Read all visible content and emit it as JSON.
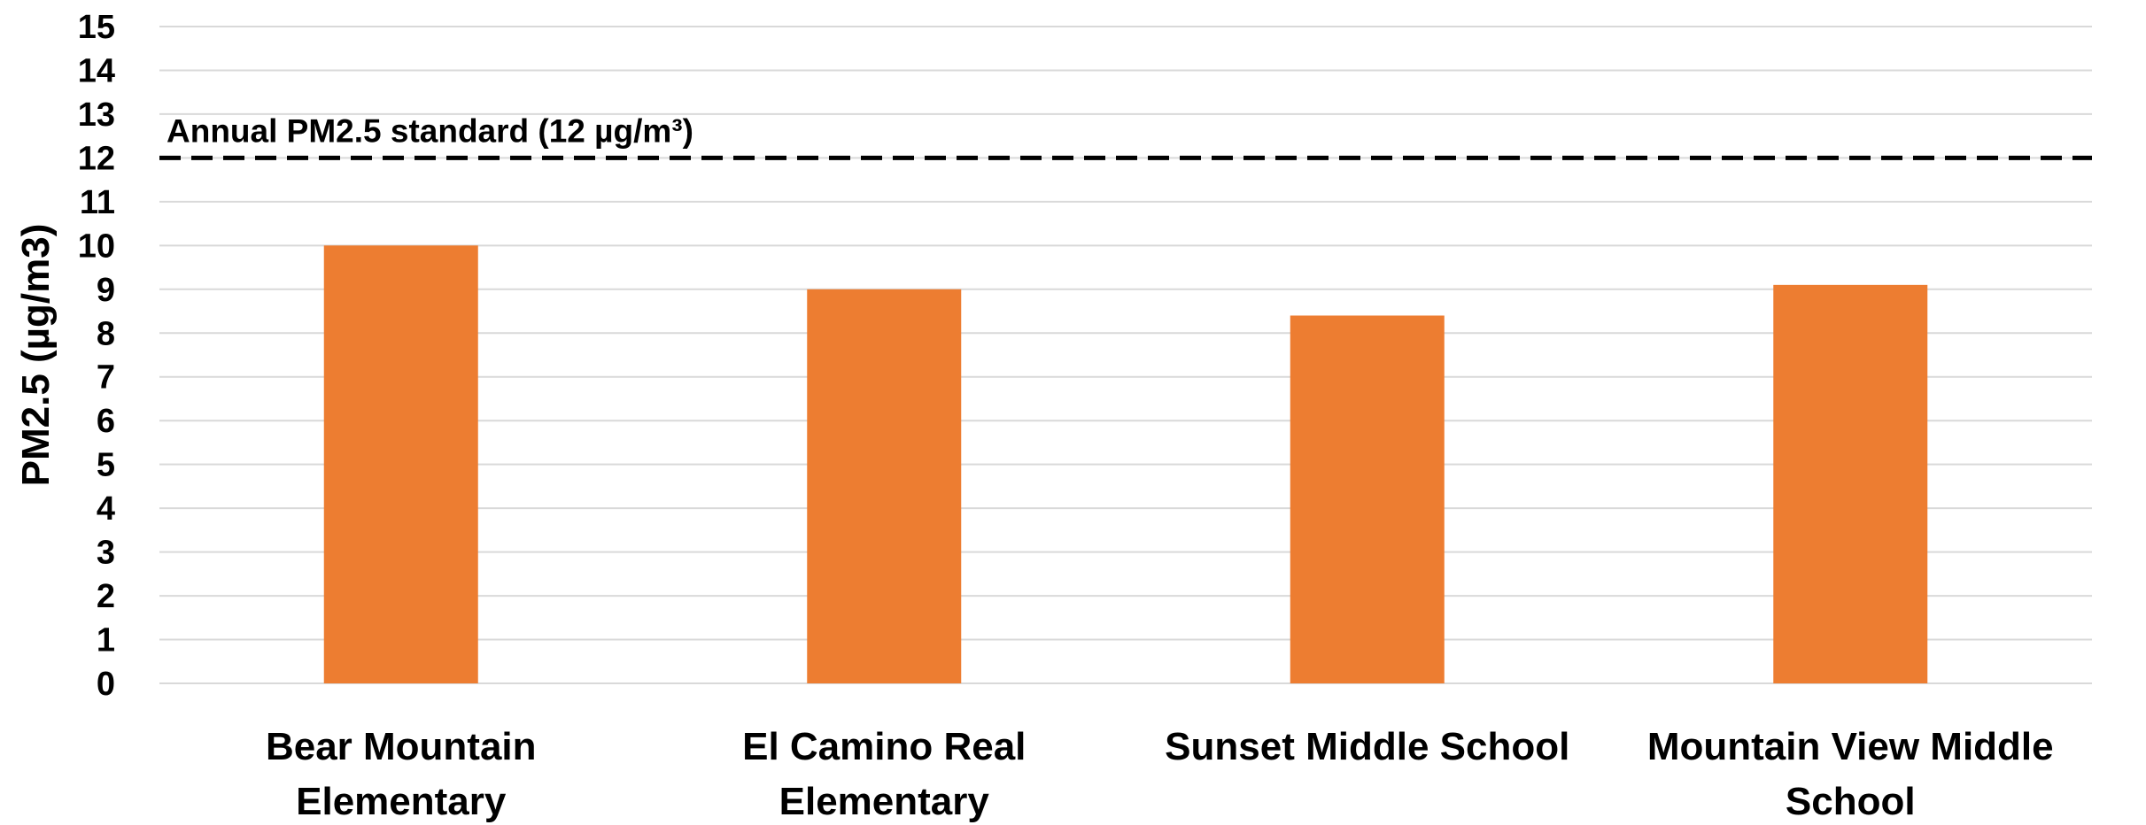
{
  "chart_data": {
    "type": "bar",
    "categories": [
      [
        "Bear Mountain",
        "Elementary"
      ],
      [
        "El Camino Real",
        "Elementary"
      ],
      [
        "Sunset Middle School"
      ],
      [
        "Mountain View Middle",
        "School"
      ]
    ],
    "values": [
      10.0,
      9.0,
      8.4,
      9.1
    ],
    "title": "",
    "xlabel": "",
    "ylabel": "PM2.5 (µg/m3)",
    "ylim": [
      0,
      15
    ],
    "yticks": [
      0,
      1,
      2,
      3,
      4,
      5,
      6,
      7,
      8,
      9,
      10,
      11,
      12,
      13,
      14,
      15
    ],
    "grid": true,
    "legend": "none",
    "bar_color": "#ed7d31",
    "reference_line": {
      "value": 12,
      "label": "Annual PM2.5 standard (12 µg/m³)",
      "style": "dashed",
      "color": "#000000"
    }
  }
}
